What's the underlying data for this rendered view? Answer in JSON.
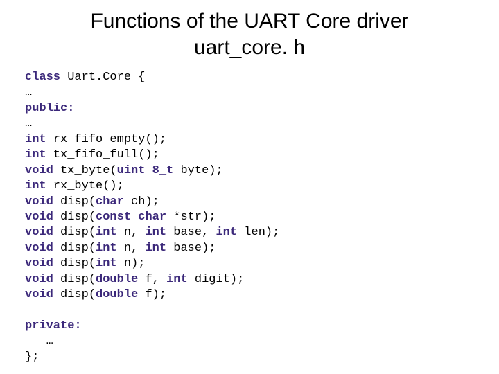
{
  "title_line1": "Functions of the UART Core driver",
  "title_line2": "uart_core. h",
  "code": {
    "kw_class": "class",
    "classname": "Uart.Core",
    "brace_open": " {",
    "ellipsis1": "…",
    "kw_public": "public:",
    "ellipsis2": "…",
    "kw_int1": "int",
    "fn_rx_fifo_empty": " rx_fifo_empty();",
    "kw_int2": "int",
    "fn_tx_fifo_full": " tx_fifo_full();",
    "kw_void1": "void",
    "fn_tx_byte_a": " tx_byte(",
    "type_uint8": "uint 8_t",
    "fn_tx_byte_b": " byte);",
    "kw_int3": "int",
    "fn_rx_byte": " rx_byte();",
    "kw_void2": "void",
    "fn_disp1_a": " disp(",
    "kw_char1": "char",
    "fn_disp1_b": " ch);",
    "kw_void3": "void",
    "fn_disp2_a": " disp(",
    "kw_const": "const",
    "kw_char2": " char",
    "fn_disp2_b": " *str);",
    "kw_void4": "void",
    "fn_disp3_a": " disp(",
    "kw_int4": "int",
    "p_n1": " n, ",
    "kw_int5": "int",
    "p_base1": " base, ",
    "kw_int6": "int",
    "p_len": " len);",
    "kw_void5": "void",
    "fn_disp4_a": " disp(",
    "kw_int7": "int",
    "p_n2": " n, ",
    "kw_int8": "int",
    "p_base2": " base);",
    "kw_void6": "void",
    "fn_disp5_a": " disp(",
    "kw_int9": "int",
    "p_n3": " n);",
    "kw_void7": "void",
    "fn_disp6_a": " disp(",
    "kw_double1": "double",
    "p_f1": " f, ",
    "kw_int10": "int",
    "p_digit": " digit);",
    "kw_void8": "void",
    "fn_disp7_a": " disp(",
    "kw_double2": "double",
    "p_f2": " f);",
    "kw_private": "private:",
    "ellipsis3": "   …",
    "brace_close": "};"
  },
  "colors": {
    "background": "#ffffff",
    "text": "#000000",
    "keyword": "#3b287a"
  }
}
